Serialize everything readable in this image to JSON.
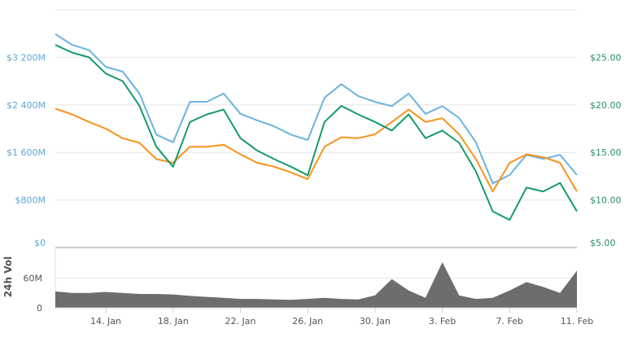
{
  "chart_data": [
    {
      "type": "line",
      "x_axis": {
        "ticks": [
          "14. Jan",
          "18. Jan",
          "22. Jan",
          "26. Jan",
          "30. Jan",
          "3. Feb",
          "7. Feb",
          "11. Feb"
        ],
        "range": [
          "Jan 11",
          "Feb 11"
        ]
      },
      "y_left": {
        "ticks": [
          "$0",
          "$800M",
          "$1 600M",
          "$2 400M",
          "$3 200M"
        ],
        "range": [
          0,
          4000
        ],
        "unit": "M USD"
      },
      "y_right": {
        "ticks": [
          "$5.00",
          "$10.00",
          "$15.00",
          "$20.00",
          "$25.00"
        ],
        "range": [
          5,
          30
        ]
      },
      "grid": true,
      "x": [
        "Jan 11",
        "Jan 12",
        "Jan 13",
        "Jan 14",
        "Jan 15",
        "Jan 16",
        "Jan 17",
        "Jan 18",
        "Jan 19",
        "Jan 20",
        "Jan 21",
        "Jan 22",
        "Jan 23",
        "Jan 24",
        "Jan 25",
        "Jan 26",
        "Jan 27",
        "Jan 28",
        "Jan 29",
        "Jan 30",
        "Jan 31",
        "Feb 1",
        "Feb 2",
        "Feb 3",
        "Feb 4",
        "Feb 5",
        "Feb 6",
        "Feb 7",
        "Feb 8",
        "Feb 9",
        "Feb 10",
        "Feb 11"
      ],
      "series": [
        {
          "axis": "left",
          "color": "#6cb3e0",
          "values": [
            3590,
            3410,
            3320,
            3040,
            2960,
            2590,
            1900,
            1770,
            2450,
            2450,
            2590,
            2250,
            2140,
            2040,
            1900,
            1810,
            2520,
            2750,
            2550,
            2450,
            2380,
            2590,
            2250,
            2380,
            2180,
            1770,
            1080,
            1220,
            1560,
            1490,
            1560,
            1220
          ]
        },
        {
          "axis": "right",
          "color": "#f7931a",
          "values": [
            19.6,
            19.0,
            18.2,
            17.5,
            16.5,
            16.0,
            14.3,
            13.9,
            15.6,
            15.6,
            15.8,
            14.8,
            13.9,
            13.5,
            12.9,
            12.2,
            15.6,
            16.6,
            16.5,
            16.9,
            18.2,
            19.5,
            18.2,
            18.6,
            16.9,
            14.3,
            10.9,
            13.9,
            14.8,
            14.5,
            13.9,
            10.9
          ]
        },
        {
          "axis": "right",
          "color": "#169a6b",
          "values": [
            26.3,
            25.5,
            25.0,
            23.3,
            22.5,
            19.9,
            15.6,
            13.5,
            18.2,
            19.0,
            19.5,
            16.5,
            15.2,
            14.3,
            13.5,
            12.6,
            18.2,
            19.9,
            19.0,
            18.2,
            17.3,
            19.0,
            16.5,
            17.3,
            16.0,
            13.0,
            8.8,
            7.9,
            11.3,
            10.9,
            11.8,
            8.8
          ]
        }
      ]
    },
    {
      "type": "area",
      "ylabel": "24h Vol",
      "y_ticks": [
        "0",
        "60M"
      ],
      "range": [
        0,
        120
      ],
      "color": "#6d6d6d",
      "values": [
        33,
        30,
        30,
        32,
        30,
        28,
        28,
        27,
        24,
        22,
        20,
        18,
        18,
        17,
        16,
        18,
        20,
        18,
        17,
        25,
        58,
        35,
        20,
        92,
        25,
        18,
        20,
        35,
        52,
        42,
        30,
        75
      ]
    }
  ]
}
